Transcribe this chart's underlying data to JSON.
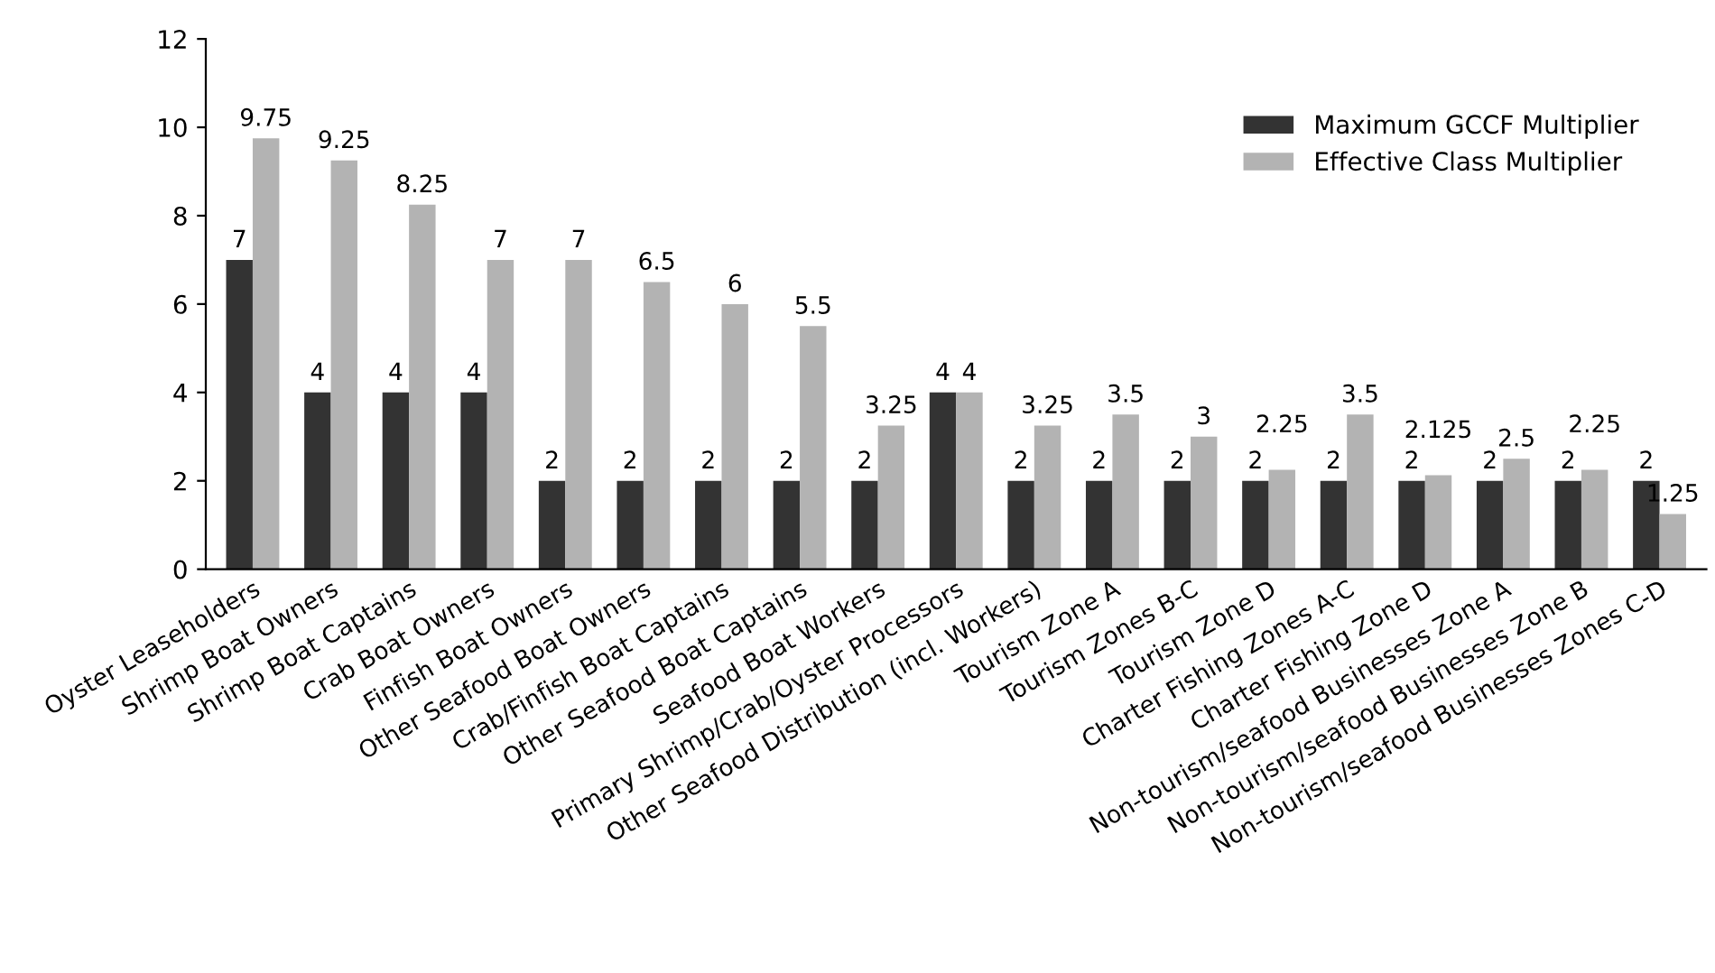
{
  "chart_data": {
    "type": "bar",
    "categories": [
      "Oyster Leaseholders",
      "Shrimp Boat Owners",
      "Shrimp Boat Captains",
      "Crab Boat Owners",
      "Finfish Boat Owners",
      "Other Seafood Boat Owners",
      "Crab/Finfish Boat Captains",
      "Other Seafood Boat Captains",
      "Seafood Boat Workers",
      "Primary Shrimp/Crab/Oyster Processors",
      "Other Seafood Distribution (incl. Workers)",
      "Tourism Zone A",
      "Tourism Zones B-C",
      "Tourism Zone D",
      "Charter Fishing Zones A-C",
      "Charter Fishing Zone D",
      "Non-tourism/seafood Businesses Zone A",
      "Non-tourism/seafood Businesses Zone B",
      "Non-tourism/seafood Businesses Zones C-D"
    ],
    "series": [
      {
        "name": "Maximum GCCF Multiplier",
        "color": "#333333",
        "values": [
          7,
          4,
          4,
          4,
          2,
          2,
          2,
          2,
          2,
          4,
          2,
          2,
          2,
          2,
          2,
          2,
          2,
          2,
          2
        ]
      },
      {
        "name": "Effective Class Multiplier",
        "color": "#b3b3b3",
        "values": [
          9.75,
          9.25,
          8.25,
          7,
          7,
          6.5,
          6,
          5.5,
          3.25,
          4,
          3.25,
          3.5,
          3,
          2.25,
          3.5,
          2.125,
          2.5,
          2.25,
          1.25
        ]
      }
    ],
    "ylim": [
      0,
      12
    ],
    "yticks": [
      0,
      2,
      4,
      6,
      8,
      10,
      12
    ],
    "grid": false,
    "legend": "top right",
    "data_labels": true
  }
}
